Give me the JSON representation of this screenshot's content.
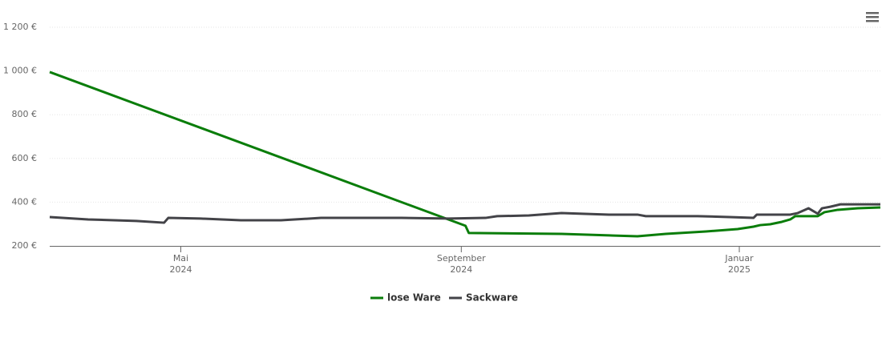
{
  "chart_data": {
    "type": "line",
    "xlim": [
      2024.174,
      2025.169
    ],
    "xticks": [
      {
        "value": 2024.331,
        "label": "Mai 2024"
      },
      {
        "value": 2024.667,
        "label": "September 2024"
      },
      {
        "value": 2025,
        "label": "Januar 2025"
      }
    ],
    "ylim": [
      200,
      1200
    ],
    "yticks": [
      {
        "value": 200,
        "label": "200 €"
      },
      {
        "value": 400,
        "label": "400 €"
      },
      {
        "value": 600,
        "label": "600 €"
      },
      {
        "value": 800,
        "label": "800 €"
      },
      {
        "value": 1000,
        "label": "1 000 €"
      },
      {
        "value": 1200,
        "label": "1 200 €"
      }
    ],
    "grid": true,
    "legend": "bottom",
    "series": [
      {
        "name": "lose Ware",
        "color": "#0a7d0a",
        "x": [
          2024.174,
          2024.672,
          2024.676,
          2024.787,
          2024.844,
          2024.878,
          2024.912,
          2024.96,
          2024.998,
          2025.017,
          2025.025,
          2025.037,
          2025.051,
          2025.061,
          2025.067,
          2025.094,
          2025.102,
          2025.118,
          2025.142,
          2025.169
        ],
        "values": [
          995,
          292,
          259,
          255,
          248,
          244,
          255,
          266,
          277,
          288,
          295,
          299,
          310,
          321,
          336,
          336,
          354,
          365,
          372,
          376
        ]
      },
      {
        "name": "Sackware",
        "color": "#434348",
        "x": [
          2024.174,
          2024.22,
          2024.278,
          2024.311,
          2024.316,
          2024.355,
          2024.403,
          2024.451,
          2024.499,
          2024.595,
          2024.652,
          2024.696,
          2024.71,
          2024.748,
          2024.787,
          2024.844,
          2024.878,
          2024.888,
          2024.95,
          2024.988,
          2025.017,
          2025.021,
          2025.061,
          2025.07,
          2025.083,
          2025.094,
          2025.099,
          2025.109,
          2025.121,
          2025.169
        ],
        "values": [
          332,
          321,
          314,
          306,
          328,
          325,
          317,
          317,
          328,
          328,
          325,
          328,
          336,
          339,
          350,
          343,
          343,
          336,
          336,
          332,
          328,
          343,
          343,
          350,
          372,
          347,
          372,
          379,
          390,
          390
        ]
      }
    ]
  }
}
